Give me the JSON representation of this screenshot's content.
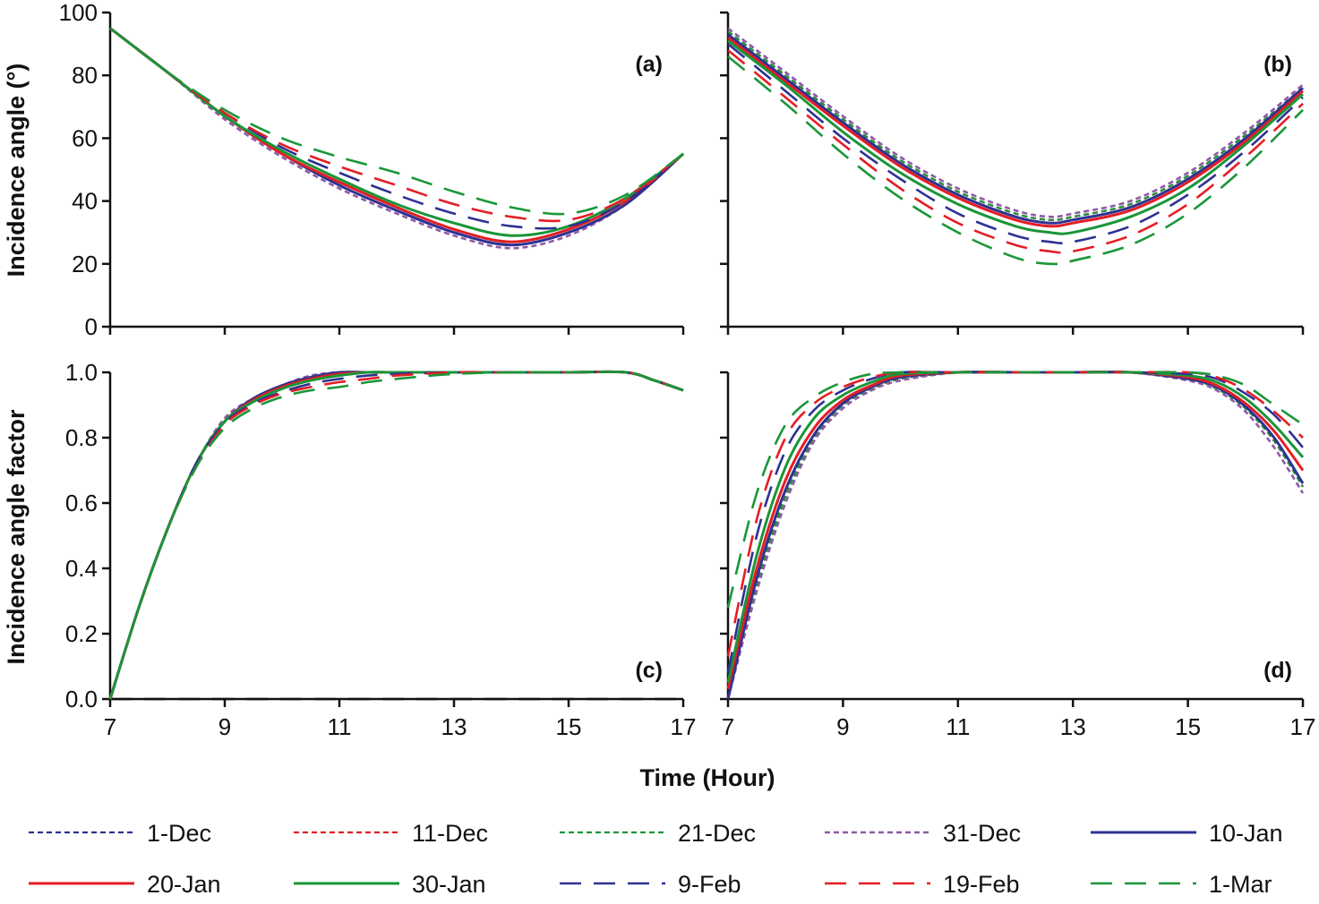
{
  "figure": {
    "xlabel": "Time (Hour)",
    "ylabel_top": "Incidence angle (°)",
    "ylabel_bottom": "Incidence angle factor"
  },
  "legend": [
    {
      "name": "1-Dec",
      "color": "#2e3192",
      "dash": "6,4",
      "width": 2.2
    },
    {
      "name": "11-Dec",
      "color": "#e31e24",
      "dash": "6,4",
      "width": 2.2
    },
    {
      "name": "21-Dec",
      "color": "#1a9639",
      "dash": "6,4",
      "width": 2.2
    },
    {
      "name": "31-Dec",
      "color": "#8e5aa6",
      "dash": "6,4",
      "width": 2.6
    },
    {
      "name": "10-Jan",
      "color": "#2e3192",
      "dash": "",
      "width": 3
    },
    {
      "name": "20-Jan",
      "color": "#e31e24",
      "dash": "",
      "width": 3
    },
    {
      "name": "30-Jan",
      "color": "#1a9639",
      "dash": "",
      "width": 3
    },
    {
      "name": "9-Feb",
      "color": "#2e3192",
      "dash": "24,14",
      "width": 2.6
    },
    {
      "name": "19-Feb",
      "color": "#e31e24",
      "dash": "24,14",
      "width": 2.6
    },
    {
      "name": "1-Mar",
      "color": "#1a9639",
      "dash": "24,14",
      "width": 2.6
    }
  ],
  "chart_data": [
    {
      "panel": "(a)",
      "type": "line",
      "xlim": [
        7,
        17
      ],
      "ylim": [
        0,
        100
      ],
      "xticks": [
        7,
        9,
        11,
        13,
        15,
        17
      ],
      "yticks": [
        0,
        20,
        40,
        60,
        80,
        100
      ],
      "ytick_labels": [
        "0",
        "20",
        "40",
        "60",
        "80",
        "100"
      ],
      "x": [
        7,
        8,
        9,
        10,
        11,
        12,
        13,
        14,
        15,
        16,
        17
      ],
      "series": [
        {
          "name": "1-Dec",
          "values": [
            95,
            81,
            67,
            55,
            45,
            37,
            30,
            26,
            30,
            39,
            55
          ]
        },
        {
          "name": "11-Dec",
          "values": [
            95,
            81,
            67,
            55,
            45,
            37,
            30,
            26,
            30,
            39,
            55
          ]
        },
        {
          "name": "21-Dec",
          "values": [
            95,
            81,
            67,
            55,
            45,
            37,
            30,
            26,
            30,
            39,
            55
          ]
        },
        {
          "name": "31-Dec",
          "values": [
            95,
            81,
            66,
            54,
            44,
            36,
            29,
            25,
            29,
            39,
            55
          ]
        },
        {
          "name": "10-Jan",
          "values": [
            95,
            81,
            67,
            55,
            45,
            37,
            30,
            26,
            30,
            39,
            55
          ]
        },
        {
          "name": "20-Jan",
          "values": [
            95,
            81,
            67,
            55,
            46,
            38,
            31,
            27,
            31,
            40,
            55
          ]
        },
        {
          "name": "30-Jan",
          "values": [
            95,
            81,
            67,
            56,
            47,
            39,
            33,
            29,
            32,
            41,
            55
          ]
        },
        {
          "name": "9-Feb",
          "values": [
            95,
            81,
            68,
            57,
            49,
            42,
            36,
            32,
            32,
            40,
            55
          ]
        },
        {
          "name": "19-Feb",
          "values": [
            95,
            81,
            68,
            58,
            51,
            45,
            39,
            35,
            34,
            41,
            55
          ]
        },
        {
          "name": "1-Mar",
          "values": [
            95,
            81,
            69,
            60,
            54,
            49,
            43,
            38,
            36,
            42,
            55
          ]
        }
      ]
    },
    {
      "panel": "(b)",
      "type": "line",
      "xlim": [
        7,
        17
      ],
      "ylim": [
        0,
        100
      ],
      "xticks": [
        7,
        9,
        11,
        13,
        15,
        17
      ],
      "yticks": [
        0,
        20,
        40,
        60,
        80,
        100
      ],
      "ytick_labels": [],
      "x": [
        7,
        8,
        9,
        10,
        11,
        12,
        12.6,
        13,
        14,
        15,
        16,
        17
      ],
      "series": [
        {
          "name": "1-Dec",
          "values": [
            94,
            80,
            66,
            53,
            43,
            36,
            34,
            35,
            39,
            48,
            61,
            76
          ]
        },
        {
          "name": "11-Dec",
          "values": [
            94,
            80,
            66,
            53,
            43,
            36,
            34,
            35,
            39,
            48,
            61,
            76
          ]
        },
        {
          "name": "21-Dec",
          "values": [
            94,
            80,
            66,
            53,
            43,
            36,
            34,
            35,
            39,
            48,
            61,
            76
          ]
        },
        {
          "name": "31-Dec",
          "values": [
            95,
            81,
            67,
            54,
            44,
            37,
            35,
            36,
            40,
            49,
            62,
            77
          ]
        },
        {
          "name": "10-Jan",
          "values": [
            93,
            79,
            65,
            52,
            42,
            35,
            33,
            34,
            38,
            47,
            60,
            76
          ]
        },
        {
          "name": "20-Jan",
          "values": [
            92,
            78,
            64,
            51,
            41,
            34,
            32,
            33,
            37,
            46,
            59,
            75
          ]
        },
        {
          "name": "30-Jan",
          "values": [
            91,
            77,
            62,
            49,
            39,
            32,
            30,
            30,
            35,
            44,
            58,
            74
          ]
        },
        {
          "name": "9-Feb",
          "values": [
            90,
            75,
            60,
            47,
            36,
            29,
            27,
            27,
            32,
            42,
            56,
            73
          ]
        },
        {
          "name": "19-Feb",
          "values": [
            88,
            73,
            58,
            44,
            33,
            26,
            24,
            24,
            29,
            39,
            54,
            71
          ]
        },
        {
          "name": "1-Mar",
          "values": [
            86,
            71,
            55,
            41,
            30,
            22,
            20,
            21,
            26,
            36,
            51,
            69
          ]
        }
      ]
    },
    {
      "panel": "(c)",
      "type": "line",
      "xlim": [
        7,
        17
      ],
      "ylim": [
        0,
        1
      ],
      "xticks": [
        7,
        9,
        11,
        13,
        15,
        17
      ],
      "xtick_labels": [
        "7",
        "9",
        "11",
        "13",
        "15",
        "17"
      ],
      "yticks": [
        0,
        0.2,
        0.4,
        0.6,
        0.8,
        1.0
      ],
      "ytick_labels": [
        "0.0",
        "0.2",
        "0.4",
        "0.6",
        "0.8",
        "1.0"
      ],
      "x": [
        7,
        7.5,
        8,
        8.5,
        9,
        9.5,
        10,
        10.5,
        11,
        11.5,
        12,
        13,
        14,
        15,
        16,
        16.5,
        17
      ],
      "reference_line": {
        "y": 0,
        "color": "#111111",
        "dash": "24,14"
      },
      "series": [
        {
          "name": "1-Dec",
          "values": [
            0,
            0.28,
            0.52,
            0.72,
            0.85,
            0.92,
            0.96,
            0.985,
            1,
            1,
            1,
            1,
            1,
            1,
            1,
            0.975,
            0.945
          ]
        },
        {
          "name": "11-Dec",
          "values": [
            0,
            0.28,
            0.52,
            0.72,
            0.85,
            0.92,
            0.96,
            0.985,
            1,
            1,
            1,
            1,
            1,
            1,
            1,
            0.975,
            0.945
          ]
        },
        {
          "name": "21-Dec",
          "values": [
            0,
            0.28,
            0.52,
            0.72,
            0.85,
            0.92,
            0.96,
            0.985,
            1,
            1,
            1,
            1,
            1,
            1,
            1,
            0.975,
            0.945
          ]
        },
        {
          "name": "31-Dec",
          "values": [
            0,
            0.28,
            0.52,
            0.72,
            0.86,
            0.92,
            0.96,
            0.99,
            1,
            1,
            1,
            1,
            1,
            1,
            1,
            0.975,
            0.945
          ]
        },
        {
          "name": "10-Jan",
          "values": [
            0,
            0.28,
            0.52,
            0.72,
            0.85,
            0.92,
            0.96,
            0.985,
            1,
            1,
            1,
            1,
            1,
            1,
            1,
            0.975,
            0.945
          ]
        },
        {
          "name": "20-Jan",
          "values": [
            0,
            0.28,
            0.52,
            0.72,
            0.85,
            0.915,
            0.955,
            0.98,
            0.995,
            1,
            1,
            1,
            1,
            1,
            1,
            0.975,
            0.945
          ]
        },
        {
          "name": "30-Jan",
          "values": [
            0,
            0.28,
            0.52,
            0.72,
            0.85,
            0.91,
            0.95,
            0.975,
            0.99,
            1,
            1,
            1,
            1,
            1,
            1,
            0.975,
            0.945
          ]
        },
        {
          "name": "9-Feb",
          "values": [
            0,
            0.28,
            0.52,
            0.72,
            0.845,
            0.905,
            0.94,
            0.965,
            0.98,
            0.99,
            0.995,
            1,
            1,
            1,
            1,
            0.975,
            0.945
          ]
        },
        {
          "name": "19-Feb",
          "values": [
            0,
            0.28,
            0.52,
            0.71,
            0.84,
            0.9,
            0.935,
            0.955,
            0.97,
            0.98,
            0.99,
            1,
            1,
            1,
            1,
            0.975,
            0.945
          ]
        },
        {
          "name": "1-Mar",
          "values": [
            0,
            0.28,
            0.52,
            0.71,
            0.83,
            0.89,
            0.925,
            0.945,
            0.955,
            0.97,
            0.98,
            0.995,
            1,
            1,
            1,
            0.975,
            0.945
          ]
        }
      ]
    },
    {
      "panel": "(d)",
      "type": "line",
      "xlim": [
        7,
        17
      ],
      "ylim": [
        0,
        1
      ],
      "xticks": [
        7,
        9,
        11,
        13,
        15,
        17
      ],
      "xtick_labels": [
        "7",
        "9",
        "11",
        "13",
        "15",
        "17"
      ],
      "yticks": [
        0,
        0.2,
        0.4,
        0.6,
        0.8,
        1.0
      ],
      "ytick_labels": [],
      "x": [
        7,
        7.5,
        8,
        8.5,
        9,
        9.5,
        10,
        11,
        12,
        13,
        14,
        15,
        15.5,
        16,
        16.5,
        17
      ],
      "series": [
        {
          "name": "1-Dec",
          "values": [
            0,
            0.35,
            0.62,
            0.8,
            0.9,
            0.95,
            0.98,
            1,
            1,
            1,
            1,
            0.98,
            0.95,
            0.89,
            0.79,
            0.65
          ]
        },
        {
          "name": "11-Dec",
          "values": [
            0,
            0.35,
            0.62,
            0.8,
            0.9,
            0.95,
            0.98,
            1,
            1,
            1,
            1,
            0.98,
            0.95,
            0.89,
            0.79,
            0.65
          ]
        },
        {
          "name": "21-Dec",
          "values": [
            0,
            0.35,
            0.62,
            0.8,
            0.9,
            0.95,
            0.98,
            1,
            1,
            1,
            1,
            0.98,
            0.95,
            0.89,
            0.79,
            0.65
          ]
        },
        {
          "name": "31-Dec",
          "values": [
            0,
            0.33,
            0.6,
            0.79,
            0.89,
            0.945,
            0.975,
            1,
            1,
            1,
            1,
            0.975,
            0.945,
            0.88,
            0.77,
            0.63
          ]
        },
        {
          "name": "10-Jan",
          "values": [
            0,
            0.37,
            0.64,
            0.81,
            0.905,
            0.955,
            0.985,
            1,
            1,
            1,
            1,
            0.98,
            0.955,
            0.895,
            0.8,
            0.66
          ]
        },
        {
          "name": "20-Jan",
          "values": [
            0.03,
            0.4,
            0.67,
            0.83,
            0.915,
            0.96,
            0.99,
            1,
            1,
            1,
            1,
            0.985,
            0.96,
            0.905,
            0.82,
            0.7
          ]
        },
        {
          "name": "30-Jan",
          "values": [
            0.05,
            0.44,
            0.71,
            0.86,
            0.93,
            0.97,
            0.995,
            1,
            1,
            1,
            1,
            0.99,
            0.97,
            0.92,
            0.84,
            0.74
          ]
        },
        {
          "name": "9-Feb",
          "values": [
            0.08,
            0.5,
            0.76,
            0.885,
            0.945,
            0.98,
            1,
            1,
            1,
            1,
            1,
            0.995,
            0.98,
            0.935,
            0.87,
            0.77
          ]
        },
        {
          "name": "19-Feb",
          "values": [
            0.13,
            0.55,
            0.8,
            0.905,
            0.955,
            0.985,
            1,
            1,
            1,
            1,
            1,
            1,
            0.985,
            0.945,
            0.88,
            0.8
          ]
        },
        {
          "name": "1-Mar",
          "values": [
            0.28,
            0.63,
            0.84,
            0.925,
            0.97,
            0.995,
            1,
            1,
            1,
            1,
            1,
            1,
            0.99,
            0.96,
            0.9,
            0.84
          ]
        }
      ]
    }
  ]
}
